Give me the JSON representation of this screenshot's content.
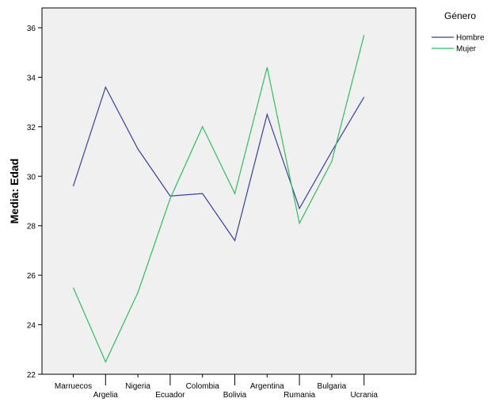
{
  "chart_data": {
    "type": "line",
    "ylabel": "Media: Edad",
    "xlabel": "",
    "categories": [
      "Marruecos",
      "Argelia",
      "Nigeria",
      "Ecuador",
      "Colombia",
      "Bolivia",
      "Argentina",
      "Rumania",
      "Bulgaria",
      "Ucrania"
    ],
    "ylim": [
      22,
      36.8
    ],
    "yticks": [
      22,
      24,
      26,
      28,
      30,
      32,
      34,
      36
    ],
    "grid": false,
    "legend": {
      "title": "Género",
      "position": "top-right"
    },
    "series": [
      {
        "name": "Hombre",
        "color": "#3b3f9e",
        "values": [
          29.6,
          33.6,
          31.1,
          29.2,
          29.3,
          27.4,
          32.5,
          28.7,
          31.0,
          33.2
        ]
      },
      {
        "name": "Mujer",
        "color": "#2fbf5b",
        "values": [
          25.5,
          22.5,
          25.3,
          29.1,
          32.0,
          29.3,
          34.4,
          28.1,
          30.6,
          35.7
        ]
      }
    ]
  }
}
